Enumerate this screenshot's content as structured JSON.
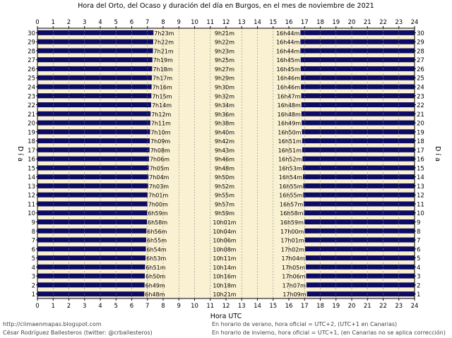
{
  "chart_data": {
    "type": "bar",
    "title": "Hora del Orto, del Ocaso y duración del día en Burgos, en el mes de noviembre de 2021",
    "xlabel": "Hora UTC",
    "ylabel": "D í a",
    "xlim": [
      0,
      24
    ],
    "x_ticks": [
      "0",
      "1",
      "2",
      "3",
      "4",
      "5",
      "6",
      "7",
      "8",
      "9",
      "10",
      "11",
      "12",
      "13",
      "14",
      "15",
      "16",
      "17",
      "18",
      "19",
      "20",
      "21",
      "22",
      "23",
      "24"
    ],
    "days": [
      1,
      2,
      3,
      4,
      5,
      6,
      7,
      8,
      9,
      10,
      11,
      12,
      13,
      14,
      15,
      16,
      17,
      18,
      19,
      20,
      21,
      22,
      23,
      24,
      25,
      26,
      27,
      28,
      29,
      30
    ],
    "sunrise": [
      "6h48m",
      "6h49m",
      "6h50m",
      "6h51m",
      "6h53m",
      "6h54m",
      "6h55m",
      "6h56m",
      "6h58m",
      "6h59m",
      "7h00m",
      "7h01m",
      "7h03m",
      "7h04m",
      "7h05m",
      "7h06m",
      "7h08m",
      "7h09m",
      "7h10m",
      "7h11m",
      "7h12m",
      "7h14m",
      "7h15m",
      "7h16m",
      "7h17m",
      "7h18m",
      "7h19m",
      "7h21m",
      "7h22m",
      "7h23m"
    ],
    "duration": [
      "10h21m",
      "10h18m",
      "10h16m",
      "10h14m",
      "10h11m",
      "10h08m",
      "10h06m",
      "10h04m",
      "10h01m",
      "9h59m",
      "9h57m",
      "9h55m",
      "9h52m",
      "9h50m",
      "9h48m",
      "9h46m",
      "9h43m",
      "9h42m",
      "9h40m",
      "9h38m",
      "9h36m",
      "9h34m",
      "9h32m",
      "9h30m",
      "9h29m",
      "9h27m",
      "9h25m",
      "9h23m",
      "9h22m",
      "9h21m"
    ],
    "sunset": [
      "17h09m",
      "17h07m",
      "17h06m",
      "17h05m",
      "17h04m",
      "17h02m",
      "17h01m",
      "17h00m",
      "16h59m",
      "16h58m",
      "16h57m",
      "16h55m",
      "16h55m",
      "16h54m",
      "16h53m",
      "16h52m",
      "16h51m",
      "16h51m",
      "16h50m",
      "16h49m",
      "16h48m",
      "16h48m",
      "16h47m",
      "16h46m",
      "16h46m",
      "16h45m",
      "16h45m",
      "16h44m",
      "16h44m",
      "16h44m"
    ],
    "colors": {
      "night": "#0c0c64",
      "day": "#faf0d2",
      "grid": "#8a8a8a"
    }
  },
  "footer": {
    "blog": "http://climaenmapas.blogspot.com",
    "author": "César Rodríguez Ballesteros (twitter: @crballesteros)",
    "summer_note": "En horario de verano, hora oficial = UTC+2, (UTC+1 en Canarias)",
    "winter_note": "En horario de invierno, hora oficial = UTC+1, (en Canarias no se aplica corrección)"
  }
}
